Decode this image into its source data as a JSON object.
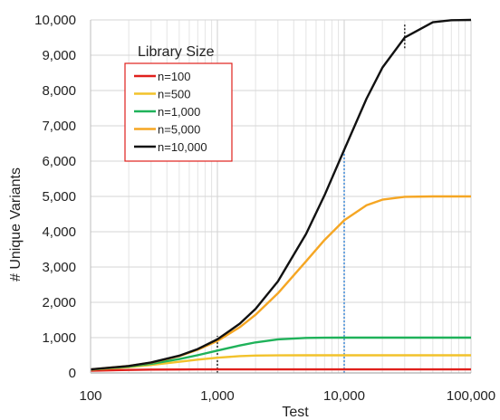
{
  "chart_data": {
    "type": "line",
    "xlabel": "Test",
    "ylabel": "# Unique Variants",
    "x_scale": "log",
    "xlim": [
      100,
      100000
    ],
    "ylim": [
      0,
      10000
    ],
    "grid": true,
    "legend_placement": "top-left",
    "legend_title": "Library Size",
    "x_ticks": [
      {
        "value": 100,
        "label": "100"
      },
      {
        "value": 1000,
        "label": "1,000"
      },
      {
        "value": 10000,
        "label": "10,000"
      },
      {
        "value": 100000,
        "label": "100,000"
      }
    ],
    "y_ticks": [
      {
        "value": 0,
        "label": "0"
      },
      {
        "value": 1000,
        "label": "1,000"
      },
      {
        "value": 2000,
        "label": "2,000"
      },
      {
        "value": 3000,
        "label": "3,000"
      },
      {
        "value": 4000,
        "label": "4,000"
      },
      {
        "value": 5000,
        "label": "5,000"
      },
      {
        "value": 6000,
        "label": "6,000"
      },
      {
        "value": 7000,
        "label": "7,000"
      },
      {
        "value": 8000,
        "label": "8,000"
      },
      {
        "value": 9000,
        "label": "9,000"
      },
      {
        "value": 10000,
        "label": "10,000"
      }
    ],
    "x": [
      100,
      200,
      300,
      500,
      700,
      1000,
      1500,
      2000,
      3000,
      5000,
      7000,
      10000,
      15000,
      20000,
      30000,
      50000,
      70000,
      100000
    ],
    "series": [
      {
        "name": "n=100",
        "color": "#e0201c",
        "values": [
          63,
          86,
          95,
          99,
          100,
          100,
          100,
          100,
          100,
          100,
          100,
          100,
          100,
          100,
          100,
          100,
          100,
          100
        ]
      },
      {
        "name": "n=500",
        "color": "#f2c22b",
        "values": [
          90,
          165,
          226,
          316,
          377,
          432,
          475,
          491,
          499,
          500,
          500,
          500,
          500,
          500,
          500,
          500,
          500,
          500
        ]
      },
      {
        "name": "n=1,000",
        "color": "#1fb25a",
        "values": [
          95,
          181,
          259,
          393,
          503,
          632,
          777,
          865,
          950,
          993,
          999,
          1000,
          1000,
          1000,
          1000,
          1000,
          1000,
          1000
        ]
      },
      {
        "name": "n=5,000",
        "color": "#f5a623",
        "values": [
          99,
          196,
          291,
          476,
          656,
          906,
          1294,
          1648,
          2256,
          3161,
          3767,
          4323,
          4751,
          4908,
          4988,
          5000,
          5000,
          5000
        ]
      },
      {
        "name": "n=10,000",
        "color": "#111111",
        "values": [
          100,
          198,
          296,
          488,
          677,
          952,
          1393,
          1813,
          2592,
          3935,
          5034,
          6321,
          7769,
          8647,
          9502,
          9933,
          9991,
          10000
        ]
      }
    ],
    "reference_lines": [
      {
        "x": 1000,
        "y_from": 0,
        "y_to": 1050,
        "color": "#333333",
        "style": "dotted"
      },
      {
        "x": 10000,
        "y_from": 0,
        "y_to": 6321,
        "color": "#4a90d9",
        "style": "dotted"
      },
      {
        "x": 30000,
        "y_from": 9200,
        "y_to": 9900,
        "color": "#333333",
        "style": "dotted"
      }
    ]
  }
}
